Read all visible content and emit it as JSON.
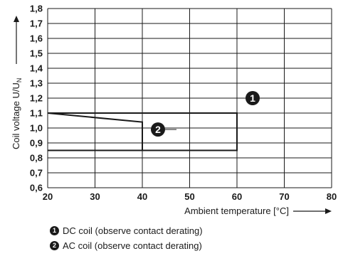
{
  "chart_data": {
    "type": "line",
    "xlabel": "Ambient temperature [°C]",
    "ylabel_main": "Coil voltage U/U",
    "ylabel_sub": "N",
    "xlim": [
      20,
      80
    ],
    "ylim": [
      0.6,
      1.8
    ],
    "x_ticks": [
      20,
      30,
      40,
      50,
      60,
      70,
      80
    ],
    "y_ticks": [
      "0,6",
      "0,7",
      "0,8",
      "0,9",
      "1,0",
      "1,1",
      "1,2",
      "1,3",
      "1,4",
      "1,5",
      "1,6",
      "1,7",
      "1,8"
    ],
    "grid": true,
    "series": [
      {
        "name": "1",
        "points": [
          [
            20,
            1.1
          ],
          [
            60,
            1.1
          ],
          [
            60,
            0.85
          ],
          [
            20,
            0.85
          ]
        ]
      },
      {
        "name": "2",
        "points": [
          [
            20,
            1.1
          ],
          [
            40,
            1.04
          ],
          [
            40,
            0.85
          ]
        ]
      }
    ],
    "callouts": [
      {
        "label": "1",
        "x": 60,
        "y": 1.2
      },
      {
        "label": "2",
        "x": 40,
        "y": 0.99
      }
    ]
  },
  "legend": [
    {
      "marker": "1",
      "text": "DC coil (observe contact derating)"
    },
    {
      "marker": "2",
      "text": "AC coil (observe contact derating)"
    }
  ]
}
